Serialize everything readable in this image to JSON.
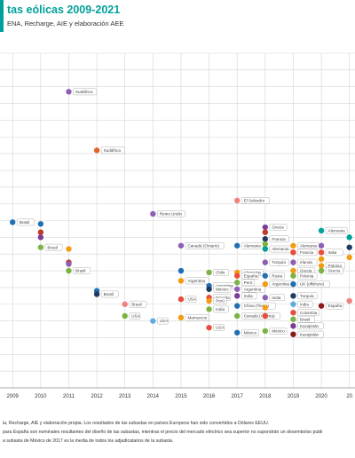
{
  "header": {
    "title": "tas eólicas 2009-2021",
    "subtitle": "ENA, Recharge, AIE y elaboración AEE",
    "title_color": "#00a19a"
  },
  "chart_data": {
    "type": "scatter",
    "title": "tas eólicas 2009-2021",
    "xlabel": "",
    "ylabel": "",
    "xlim": [
      2008.55,
      2021.2
    ],
    "ylim": [
      0,
      100
    ],
    "grid": true,
    "x_ticks": [
      "2009",
      "2010",
      "2011",
      "2012",
      "2013",
      "2014",
      "2015",
      "2016",
      "2017",
      "2018",
      "2019",
      "2020",
      "20"
    ],
    "points": [
      {
        "x": 2011.0,
        "y": 88.5,
        "color": "#8e5fb5",
        "label": "Sudáfrica"
      },
      {
        "x": 2012.0,
        "y": 71.0,
        "color": "#e8622c",
        "label": "Sudáfrica"
      },
      {
        "x": 2009.0,
        "y": 49.5,
        "color": "#1f6fb4",
        "label": "Brasil"
      },
      {
        "x": 2010.0,
        "y": 49.0,
        "color": "#1f6fb4",
        "label": ""
      },
      {
        "x": 2010.0,
        "y": 46.5,
        "color": "#c0392b",
        "label": ""
      },
      {
        "x": 2010.0,
        "y": 45.0,
        "color": "#7d3c98",
        "label": ""
      },
      {
        "x": 2010.0,
        "y": 42.0,
        "color": "#7cb342",
        "label": "Brasil"
      },
      {
        "x": 2011.0,
        "y": 41.5,
        "color": "#f39c12",
        "label": ""
      },
      {
        "x": 2011.0,
        "y": 37.5,
        "color": "#c0392b",
        "label": ""
      },
      {
        "x": 2011.0,
        "y": 37.0,
        "color": "#8e5fb5",
        "label": ""
      },
      {
        "x": 2011.0,
        "y": 35.0,
        "color": "#7cb342",
        "label": "Brasil"
      },
      {
        "x": 2012.0,
        "y": 29.0,
        "color": "#1f6fb4",
        "label": ""
      },
      {
        "x": 2012.0,
        "y": 28.0,
        "color": "#1f3a5f",
        "label": "Brasil"
      },
      {
        "x": 2013.0,
        "y": 25.0,
        "color": "#f08080",
        "label": "Brasil"
      },
      {
        "x": 2013.0,
        "y": 21.5,
        "color": "#7cb342",
        "label": "USA"
      },
      {
        "x": 2014.0,
        "y": 52.0,
        "color": "#8e5fb5",
        "label": "Reino Unido"
      },
      {
        "x": 2014.0,
        "y": 20.0,
        "color": "#5dade2",
        "label": "USA"
      },
      {
        "x": 2015.0,
        "y": 42.5,
        "color": "#8e5fb5",
        "label": "Canadá (Ontario)"
      },
      {
        "x": 2015.0,
        "y": 35.0,
        "color": "#1f6fb4",
        "label": ""
      },
      {
        "x": 2015.0,
        "y": 32.0,
        "color": "#f39c12",
        "label": "Argentina"
      },
      {
        "x": 2015.0,
        "y": 26.5,
        "color": "#e74c3c",
        "label": "USA"
      },
      {
        "x": 2015.0,
        "y": 21.0,
        "color": "#f39c12",
        "label": "Marruecos"
      },
      {
        "x": 2016.0,
        "y": 34.5,
        "color": "#7cb342",
        "label": "Chile"
      },
      {
        "x": 2016.0,
        "y": 30.5,
        "color": "#1f6fb4",
        "label": "Argentina"
      },
      {
        "x": 2016.0,
        "y": 29.5,
        "color": "#1f3a5f",
        "label": "México"
      },
      {
        "x": 2016.0,
        "y": 27.0,
        "color": "#e74c3c",
        "label": "España"
      },
      {
        "x": 2016.0,
        "y": 26.0,
        "color": "#f39c12",
        "label": "Perú"
      },
      {
        "x": 2016.0,
        "y": 23.5,
        "color": "#7cb342",
        "label": "India"
      },
      {
        "x": 2016.0,
        "y": 18.0,
        "color": "#e74c3c",
        "label": "USA"
      },
      {
        "x": 2017.0,
        "y": 56.0,
        "color": "#f08080",
        "label": "El Salvador"
      },
      {
        "x": 2017.0,
        "y": 42.5,
        "color": "#1f6fb4",
        "label": "Alemania"
      },
      {
        "x": 2017.0,
        "y": 34.5,
        "color": "#f39c12",
        "label": "Alemania"
      },
      {
        "x": 2017.0,
        "y": 33.5,
        "color": "#e74c3c",
        "label": "España"
      },
      {
        "x": 2017.0,
        "y": 31.5,
        "color": "#7cb342",
        "label": "Perú"
      },
      {
        "x": 2017.0,
        "y": 29.5,
        "color": "#8e5fb5",
        "label": "Argentina"
      },
      {
        "x": 2017.0,
        "y": 27.5,
        "color": "#7d3c98",
        "label": "India"
      },
      {
        "x": 2017.0,
        "y": 24.5,
        "color": "#1f6fb4",
        "label": "China (Tierra)"
      },
      {
        "x": 2017.0,
        "y": 21.5,
        "color": "#7cb342",
        "label": "Canadá (Alberta)"
      },
      {
        "x": 2017.0,
        "y": 16.5,
        "color": "#1f6fb4",
        "label": "México"
      },
      {
        "x": 2018.0,
        "y": 48.0,
        "color": "#7d3c98",
        "label": "Grecia"
      },
      {
        "x": 2018.0,
        "y": 46.5,
        "color": "#c0392b",
        "label": ""
      },
      {
        "x": 2018.0,
        "y": 44.5,
        "color": "#1f3a5f",
        "label": "Francia"
      },
      {
        "x": 2018.0,
        "y": 43.0,
        "color": "#7cb342",
        "label": ""
      },
      {
        "x": 2018.0,
        "y": 41.5,
        "color": "#00a19a",
        "label": "Alemania"
      },
      {
        "x": 2018.0,
        "y": 37.5,
        "color": "#8e5fb5",
        "label": "Turquía"
      },
      {
        "x": 2018.0,
        "y": 33.5,
        "color": "#1f6fb4",
        "label": "Rusia"
      },
      {
        "x": 2018.0,
        "y": 31.0,
        "color": "#f39c12",
        "label": "Argentina"
      },
      {
        "x": 2018.0,
        "y": 27.0,
        "color": "#8e5fb5",
        "label": "India"
      },
      {
        "x": 2018.0,
        "y": 24.0,
        "color": "#f39c12",
        "label": ""
      },
      {
        "x": 2018.0,
        "y": 21.5,
        "color": "#e74c3c",
        "label": ""
      },
      {
        "x": 2018.0,
        "y": 17.0,
        "color": "#7cb342",
        "label": "México"
      },
      {
        "x": 2019.0,
        "y": 42.5,
        "color": "#f39c12",
        "label": "Alemania"
      },
      {
        "x": 2019.0,
        "y": 40.5,
        "color": "#e74c3c",
        "label": "Francia"
      },
      {
        "x": 2019.0,
        "y": 37.5,
        "color": "#8e5fb5",
        "label": "Irlanda"
      },
      {
        "x": 2019.0,
        "y": 35.0,
        "color": "#f39c12",
        "label": "Grecia"
      },
      {
        "x": 2019.0,
        "y": 33.5,
        "color": "#7cb342",
        "label": "Polonia"
      },
      {
        "x": 2019.0,
        "y": 31.0,
        "color": "#1f6fb4",
        "label": "UK (offshore)"
      },
      {
        "x": 2019.0,
        "y": 27.5,
        "color": "#1f3a5f",
        "label": "Turquía"
      },
      {
        "x": 2019.0,
        "y": 25.0,
        "color": "#5dade2",
        "label": "India"
      },
      {
        "x": 2019.0,
        "y": 22.5,
        "color": "#e74c3c",
        "label": "Colombia"
      },
      {
        "x": 2019.0,
        "y": 20.5,
        "color": "#7cb342",
        "label": "Brasil"
      },
      {
        "x": 2019.0,
        "y": 18.5,
        "color": "#7d3c98",
        "label": "Kazajistán"
      },
      {
        "x": 2019.0,
        "y": 16.0,
        "color": "#8b1a1a",
        "label": "Kazajistán"
      },
      {
        "x": 2020.0,
        "y": 47.0,
        "color": "#00a19a",
        "label": "Alemania"
      },
      {
        "x": 2020.0,
        "y": 42.5,
        "color": "#8e5fb5",
        "label": ""
      },
      {
        "x": 2020.0,
        "y": 40.5,
        "color": "#e74c3c",
        "label": "Italia"
      },
      {
        "x": 2020.0,
        "y": 38.5,
        "color": "#f39c12",
        "label": ""
      },
      {
        "x": 2020.0,
        "y": 36.5,
        "color": "#f39c12",
        "label": "Polonia"
      },
      {
        "x": 2020.0,
        "y": 35.0,
        "color": "#7cb342",
        "label": "Grecia"
      },
      {
        "x": 2020.0,
        "y": 24.5,
        "color": "#8b1a1a",
        "label": "España"
      },
      {
        "x": 2021.0,
        "y": 45.0,
        "color": "#00a19a",
        "label": ""
      },
      {
        "x": 2021.0,
        "y": 42.0,
        "color": "#1f3a5f",
        "label": ""
      },
      {
        "x": 2021.0,
        "y": 39.0,
        "color": "#f39c12",
        "label": ""
      },
      {
        "x": 2021.0,
        "y": 26.0,
        "color": "#f08080",
        "label": ""
      }
    ]
  },
  "notes": [
    "ia, Recharge, AIE y elaboración propia. Los resultados de las subastas en países Europeos han sido convertidos a Dólares EEUU.",
    "para España son nominales resultantes del diseño de las subastas, mientras el precio del mercado eléctrico sea superior no supondrán un desembolso publi",
    "a subasta de México de 2017 es la media de todos los adjudicatarios de la subasta."
  ]
}
